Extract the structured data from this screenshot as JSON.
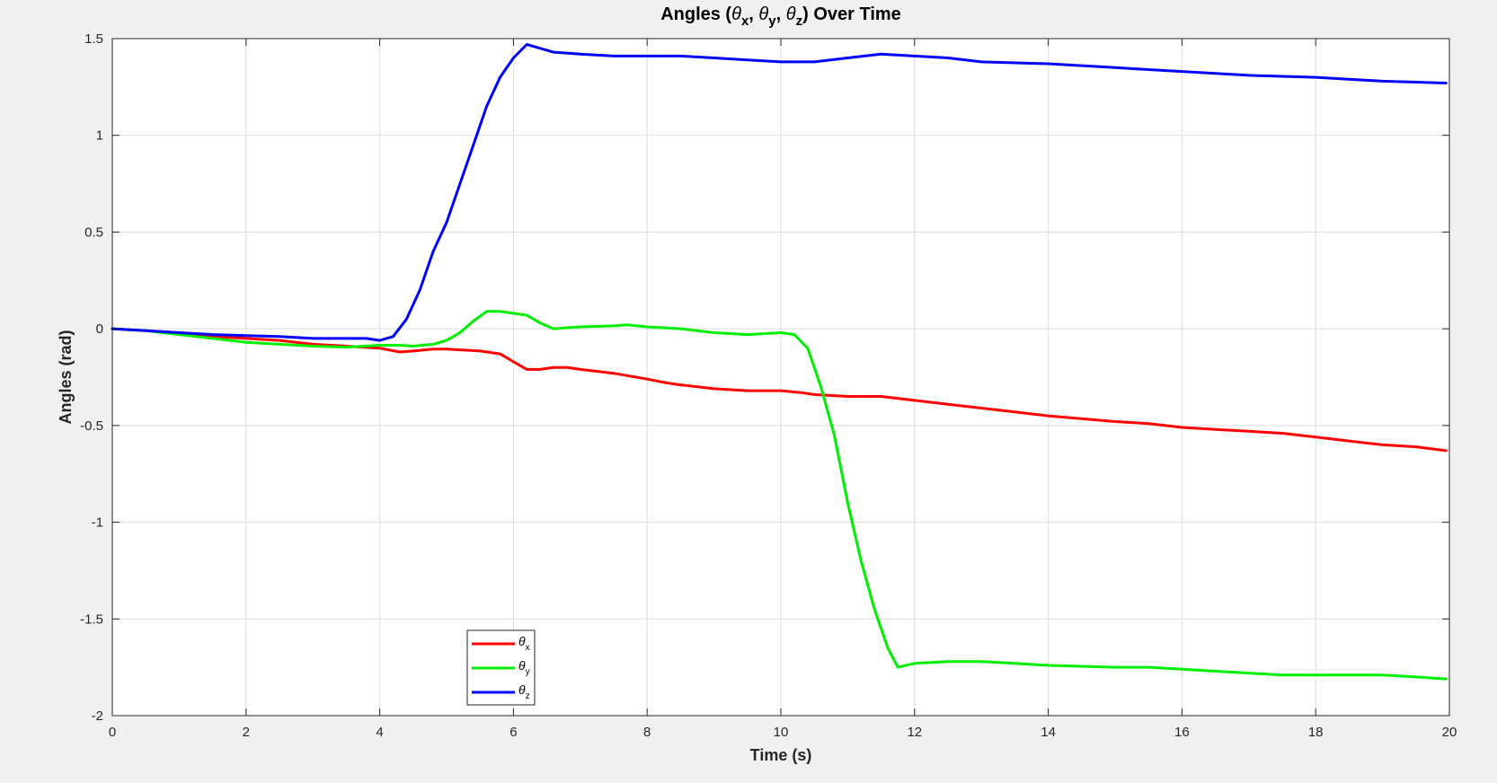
{
  "chart_data": {
    "type": "line",
    "title": "Angles (θx, θy, θz) Over Time",
    "title_parts": {
      "pre": "Angles (",
      "theta": "θ",
      "x": "x",
      "y": "y",
      "z": "z",
      "sep": ", ",
      "post": ") Over Time"
    },
    "xlabel": "Time (s)",
    "ylabel": "Angles (rad)",
    "xlim": [
      0,
      20
    ],
    "ylim": [
      -2,
      1.5
    ],
    "xticks": [
      0,
      2,
      4,
      6,
      8,
      10,
      12,
      14,
      16,
      18,
      20
    ],
    "yticks": [
      -2,
      -1.5,
      -1,
      -0.5,
      0,
      0.5,
      1,
      1.5
    ],
    "grid": true,
    "legend_position": "bottom-center",
    "series": [
      {
        "name": "θx",
        "symbol": "θ",
        "subscript": "x",
        "color": "#ff0000",
        "x": [
          0,
          0.5,
          1,
          1.5,
          2,
          2.5,
          3,
          3.5,
          4,
          4.3,
          4.5,
          4.8,
          5,
          5.5,
          5.8,
          6,
          6.2,
          6.4,
          6.6,
          6.8,
          7,
          7.5,
          8,
          8.3,
          8.5,
          9,
          9.5,
          10,
          10.3,
          10.5,
          11,
          11.5,
          12,
          12.5,
          13,
          13.5,
          14,
          15,
          15.5,
          16,
          16.5,
          17,
          17.5,
          18,
          18.5,
          19,
          19.5,
          19.95
        ],
        "y": [
          0,
          -0.01,
          -0.02,
          -0.04,
          -0.05,
          -0.06,
          -0.08,
          -0.09,
          -0.1,
          -0.12,
          -0.115,
          -0.105,
          -0.105,
          -0.115,
          -0.13,
          -0.17,
          -0.21,
          -0.21,
          -0.2,
          -0.2,
          -0.21,
          -0.23,
          -0.26,
          -0.28,
          -0.29,
          -0.31,
          -0.32,
          -0.32,
          -0.33,
          -0.34,
          -0.35,
          -0.35,
          -0.37,
          -0.39,
          -0.41,
          -0.43,
          -0.45,
          -0.48,
          -0.49,
          -0.51,
          -0.52,
          -0.53,
          -0.54,
          -0.56,
          -0.58,
          -0.6,
          -0.61,
          -0.63
        ]
      },
      {
        "name": "θy",
        "symbol": "θ",
        "subscript": "y",
        "color": "#00ee00",
        "x": [
          0,
          0.5,
          1,
          1.5,
          2,
          2.5,
          3,
          3.5,
          4,
          4.3,
          4.5,
          4.8,
          5,
          5.2,
          5.4,
          5.6,
          5.8,
          6,
          6.2,
          6.4,
          6.6,
          7,
          7.5,
          7.7,
          8,
          8.5,
          9,
          9.5,
          10,
          10.2,
          10.4,
          10.6,
          10.8,
          11,
          11.2,
          11.4,
          11.6,
          11.75,
          12,
          12.5,
          13,
          13.5,
          14,
          15,
          15.5,
          16,
          16.5,
          17,
          17.5,
          18,
          18.5,
          19,
          19.5,
          19.95
        ],
        "y": [
          0,
          -0.01,
          -0.03,
          -0.05,
          -0.07,
          -0.08,
          -0.09,
          -0.095,
          -0.085,
          -0.085,
          -0.09,
          -0.08,
          -0.06,
          -0.02,
          0.04,
          0.09,
          0.09,
          0.08,
          0.07,
          0.03,
          0,
          0.01,
          0.015,
          0.02,
          0.01,
          0,
          -0.02,
          -0.03,
          -0.02,
          -0.03,
          -0.1,
          -0.3,
          -0.55,
          -0.9,
          -1.2,
          -1.45,
          -1.65,
          -1.75,
          -1.73,
          -1.72,
          -1.72,
          -1.73,
          -1.74,
          -1.75,
          -1.75,
          -1.76,
          -1.77,
          -1.78,
          -1.79,
          -1.79,
          -1.79,
          -1.79,
          -1.8,
          -1.81
        ]
      },
      {
        "name": "θz",
        "symbol": "θ",
        "subscript": "z",
        "color": "#0000ff",
        "x": [
          0,
          0.5,
          1,
          1.5,
          2,
          2.5,
          3,
          3.5,
          3.8,
          4,
          4.2,
          4.4,
          4.6,
          4.8,
          5,
          5.2,
          5.4,
          5.6,
          5.8,
          6,
          6.2,
          6.4,
          6.6,
          7,
          7.5,
          8,
          8.5,
          9,
          9.5,
          10,
          10.5,
          11,
          11.5,
          12,
          12.5,
          13,
          14,
          15,
          15.5,
          16,
          17,
          18,
          19,
          19.95
        ],
        "y": [
          0,
          -0.01,
          -0.02,
          -0.03,
          -0.035,
          -0.04,
          -0.05,
          -0.05,
          -0.05,
          -0.06,
          -0.04,
          0.05,
          0.2,
          0.4,
          0.55,
          0.75,
          0.95,
          1.15,
          1.3,
          1.4,
          1.47,
          1.45,
          1.43,
          1.42,
          1.41,
          1.41,
          1.41,
          1.4,
          1.39,
          1.38,
          1.38,
          1.4,
          1.42,
          1.41,
          1.4,
          1.38,
          1.37,
          1.35,
          1.34,
          1.33,
          1.31,
          1.3,
          1.28,
          1.27
        ]
      }
    ]
  }
}
